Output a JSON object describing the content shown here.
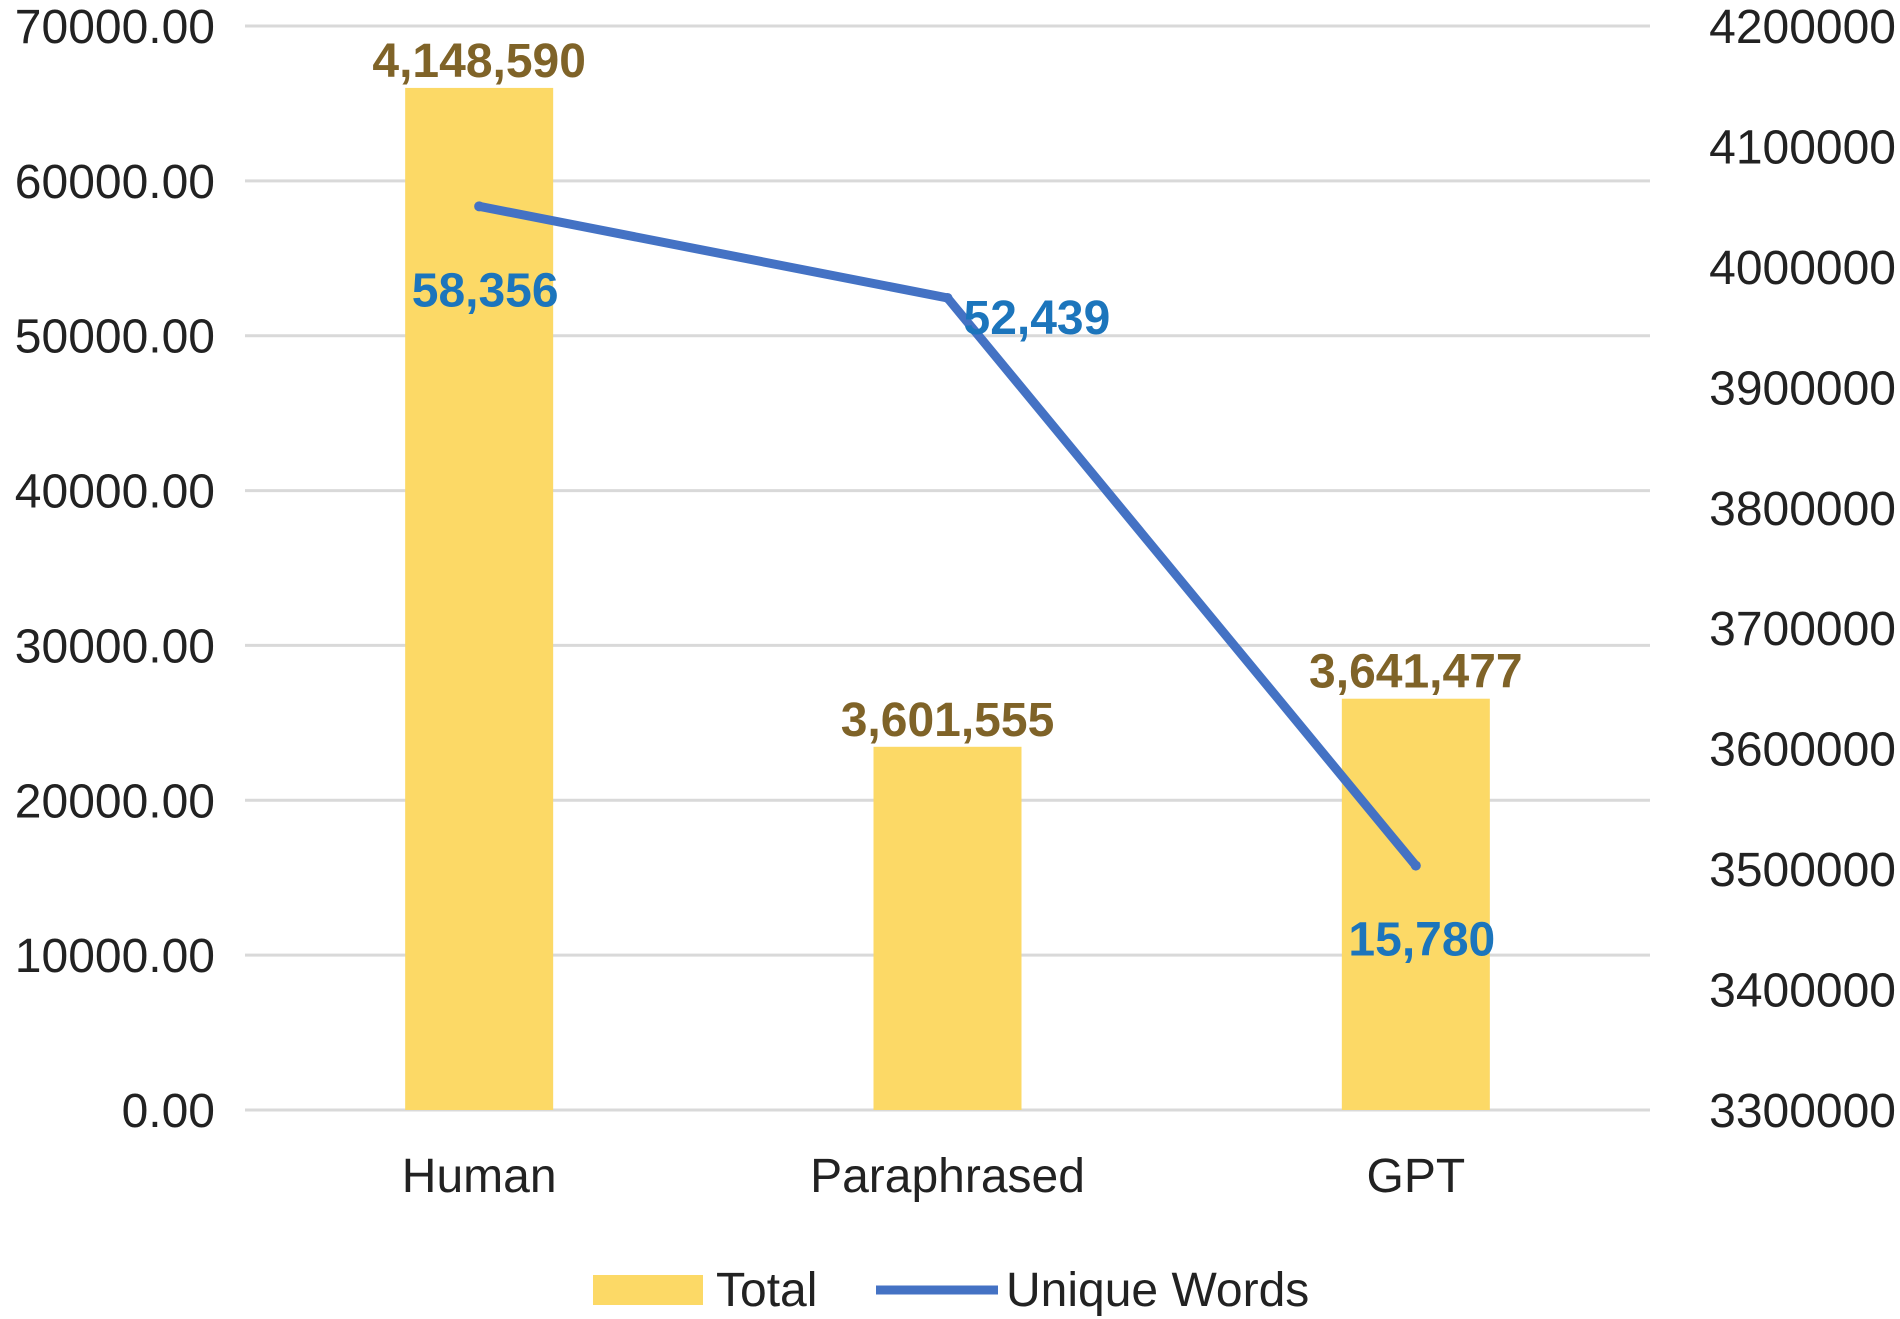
{
  "chart_data": {
    "type": "bar",
    "categories": [
      "Human",
      "Paraphrased",
      "GPT"
    ],
    "series": [
      {
        "name": "Total",
        "kind": "bar",
        "axis": "right",
        "values": [
          4148590,
          3601555,
          3641477
        ],
        "labels": [
          "4,148,590",
          "3,601,555",
          "3,641,477"
        ],
        "color": "#FCD966",
        "label_color": "#7F6328"
      },
      {
        "name": "Unique Words",
        "kind": "line",
        "axis": "left",
        "values": [
          58356,
          52439,
          15780
        ],
        "labels": [
          "58,356",
          "52,439",
          "15,780"
        ],
        "color": "#4472C4",
        "label_color": "#1C75BC"
      }
    ],
    "y_left": {
      "lim": [
        0,
        70000
      ],
      "ticks": [
        "0.00",
        "10000.00",
        "20000.00",
        "30000.00",
        "40000.00",
        "50000.00",
        "60000.00",
        "70000.00"
      ]
    },
    "y_right": {
      "lim": [
        3300000,
        4200000
      ],
      "ticks": [
        "3300000",
        "3400000",
        "3500000",
        "3600000",
        "3700000",
        "3800000",
        "3900000",
        "4000000",
        "4100000",
        "4200000"
      ]
    },
    "grid": true,
    "legend": "bottom"
  }
}
